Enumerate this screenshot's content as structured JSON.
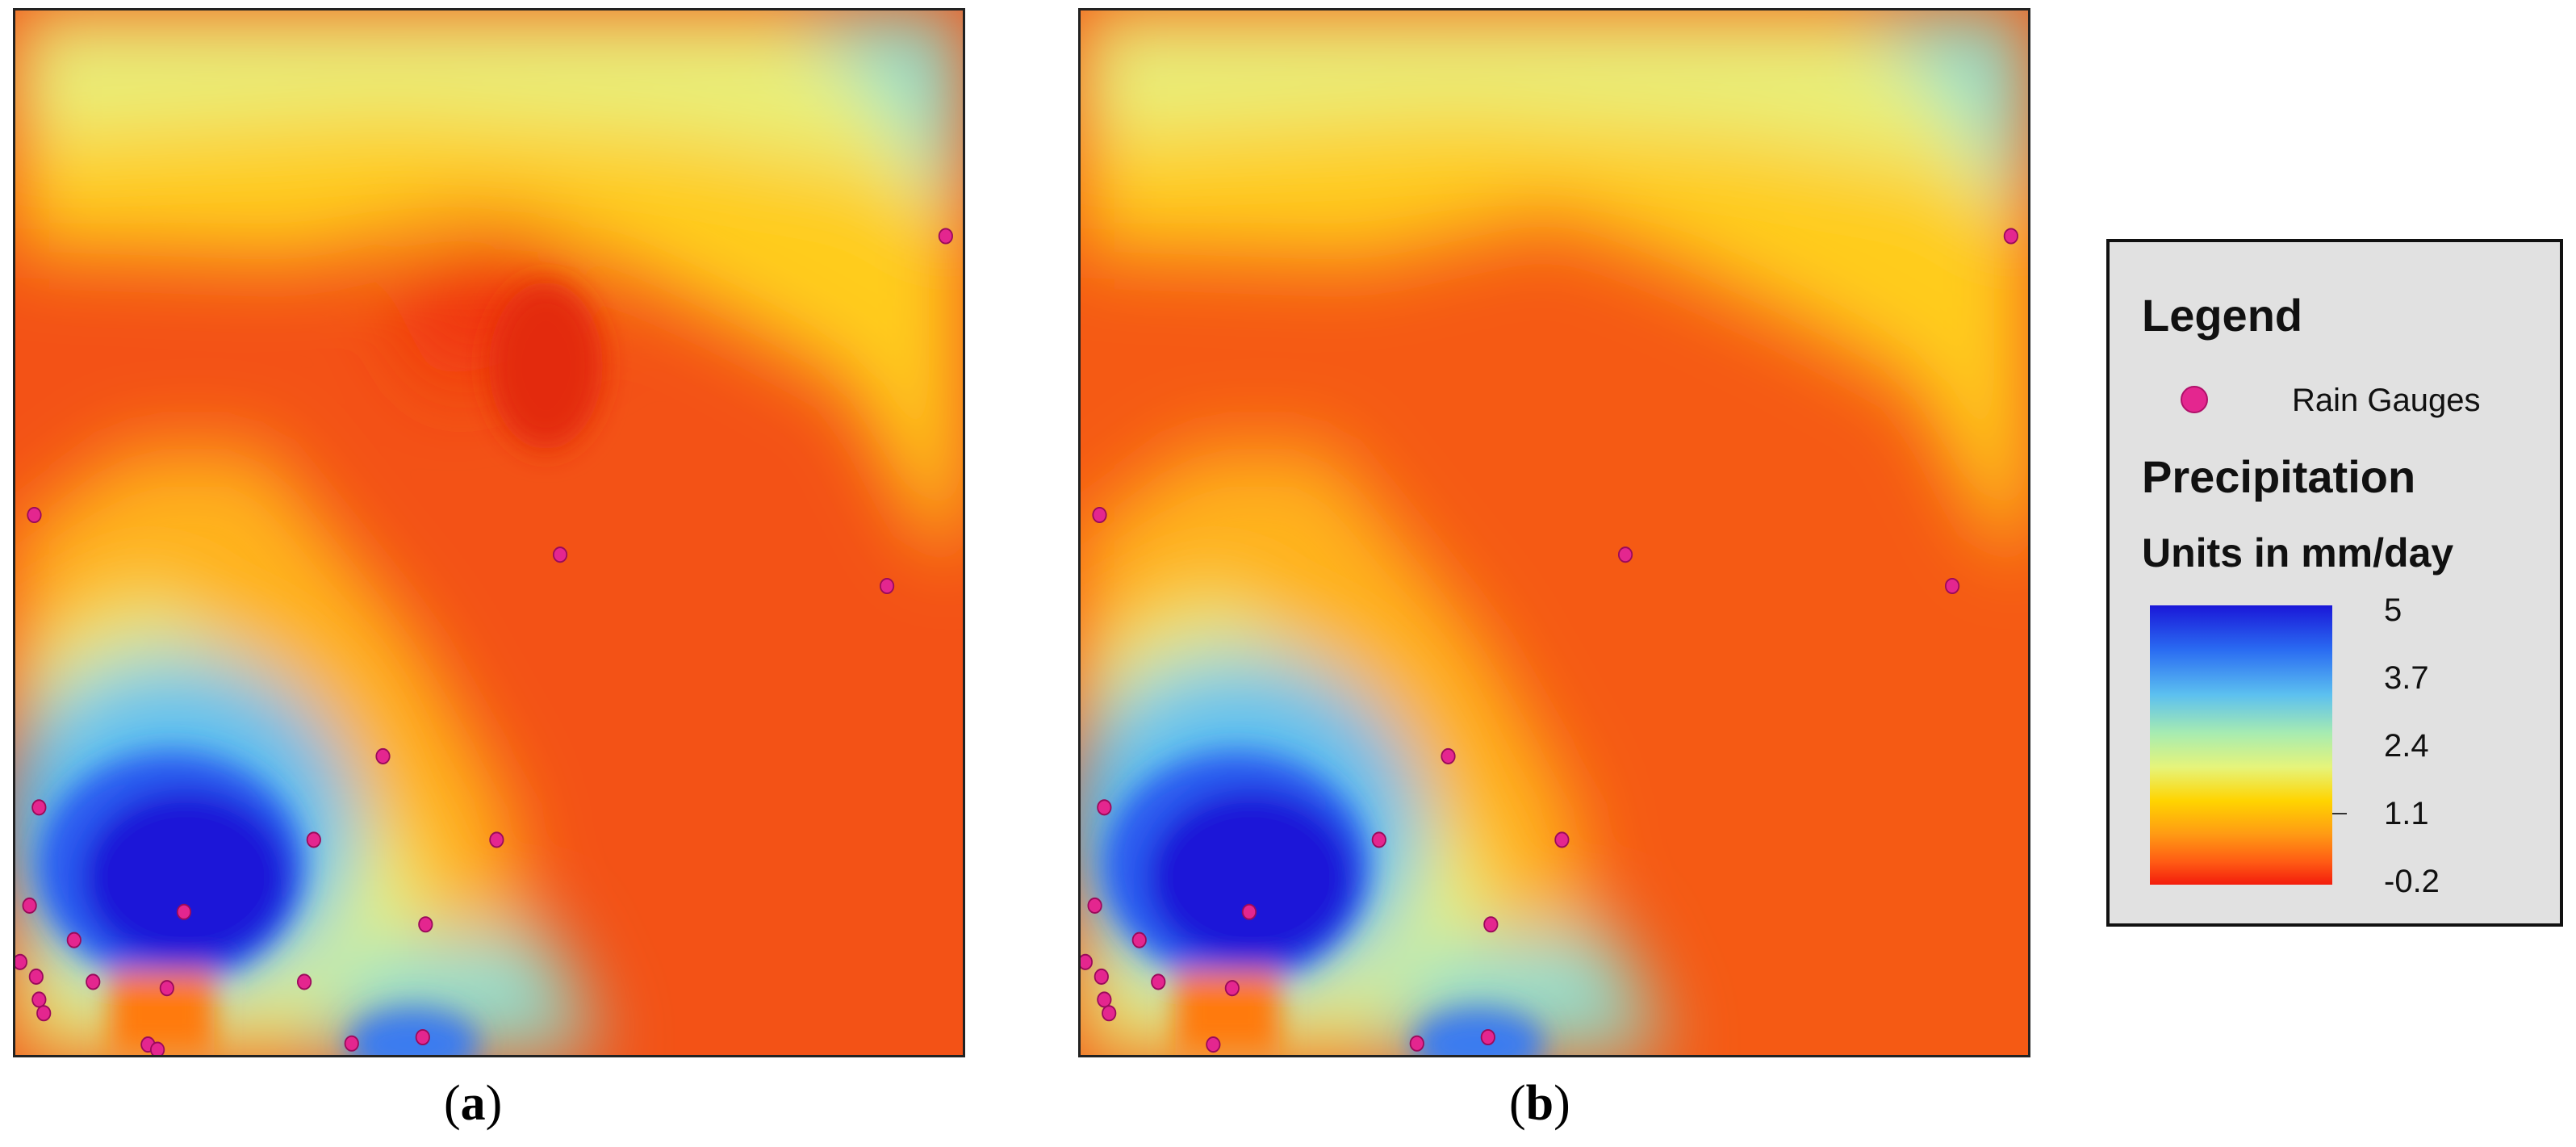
{
  "panels": [
    {
      "id": "a",
      "caption_open": "(",
      "caption_letter": "a",
      "caption_close": ")"
    },
    {
      "id": "b",
      "caption_open": "(",
      "caption_letter": "b",
      "caption_close": ")"
    }
  ],
  "legend": {
    "title": "Legend",
    "gauge_label": "Rain Gauges",
    "precip_title": "Precipitation",
    "units": "Units in mm/day",
    "ramp_labels": [
      "5",
      "3.7",
      "2.4",
      "1.1",
      "-0.2"
    ]
  },
  "colors": {
    "gauge": "#e4268f",
    "high": "#1a17d8",
    "mid": "#e6f47a",
    "low": "#f31c0c"
  },
  "gauges_a": [
    [
      0.982,
      0.216
    ],
    [
      0.02,
      0.483
    ],
    [
      0.575,
      0.521
    ],
    [
      0.92,
      0.551
    ],
    [
      0.388,
      0.714
    ],
    [
      0.025,
      0.763
    ],
    [
      0.315,
      0.794
    ],
    [
      0.508,
      0.794
    ],
    [
      0.015,
      0.857
    ],
    [
      0.178,
      0.863
    ],
    [
      0.433,
      0.875
    ],
    [
      0.062,
      0.89
    ],
    [
      0.005,
      0.911
    ],
    [
      0.022,
      0.925
    ],
    [
      0.082,
      0.93
    ],
    [
      0.16,
      0.936
    ],
    [
      0.305,
      0.93
    ],
    [
      0.025,
      0.947
    ],
    [
      0.03,
      0.96
    ],
    [
      0.14,
      0.99
    ],
    [
      0.355,
      0.989
    ],
    [
      0.43,
      0.983
    ],
    [
      0.15,
      0.995
    ]
  ],
  "gauges_b": [
    [
      0.982,
      0.216
    ],
    [
      0.02,
      0.483
    ],
    [
      0.575,
      0.521
    ],
    [
      0.92,
      0.551
    ],
    [
      0.388,
      0.714
    ],
    [
      0.025,
      0.763
    ],
    [
      0.315,
      0.794
    ],
    [
      0.508,
      0.794
    ],
    [
      0.015,
      0.857
    ],
    [
      0.178,
      0.863
    ],
    [
      0.433,
      0.875
    ],
    [
      0.062,
      0.89
    ],
    [
      0.005,
      0.911
    ],
    [
      0.022,
      0.925
    ],
    [
      0.082,
      0.93
    ],
    [
      0.16,
      0.936
    ],
    [
      0.025,
      0.947
    ],
    [
      0.03,
      0.96
    ],
    [
      0.14,
      0.99
    ],
    [
      0.355,
      0.989
    ],
    [
      0.43,
      0.983
    ]
  ]
}
